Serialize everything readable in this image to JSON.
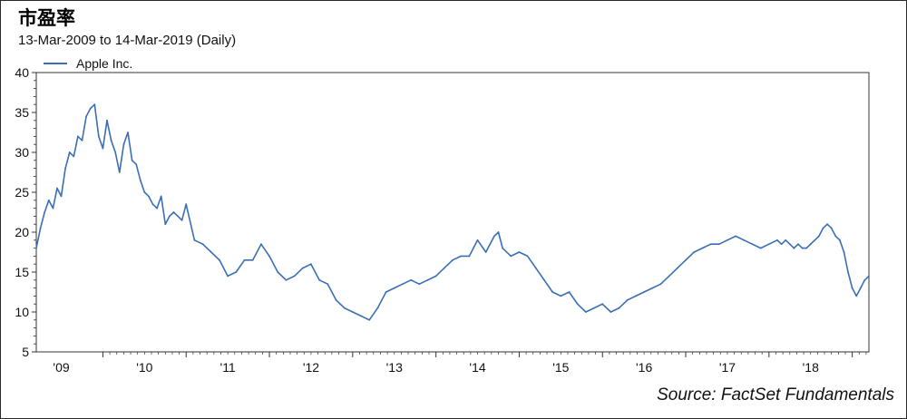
{
  "title": "市盈率",
  "subtitle": "13-Mar-2009 to 14-Mar-2019 (Daily)",
  "source": "Source: FactSet Fundamentals",
  "colors": {
    "series": "#3a6fb5",
    "axis": "#333333",
    "plot_bg": "#ffffff"
  },
  "chart_data": {
    "type": "line",
    "series": [
      {
        "name": "Apple Inc.",
        "x": [
          2009.2,
          2009.25,
          2009.3,
          2009.35,
          2009.4,
          2009.45,
          2009.5,
          2009.55,
          2009.6,
          2009.65,
          2009.7,
          2009.75,
          2009.8,
          2009.85,
          2009.9,
          2009.95,
          2010.0,
          2010.05,
          2010.1,
          2010.15,
          2010.2,
          2010.25,
          2010.3,
          2010.35,
          2010.4,
          2010.45,
          2010.5,
          2010.55,
          2010.6,
          2010.65,
          2010.7,
          2010.75,
          2010.8,
          2010.85,
          2010.9,
          2010.95,
          2011.0,
          2011.1,
          2011.2,
          2011.3,
          2011.4,
          2011.5,
          2011.6,
          2011.7,
          2011.8,
          2011.9,
          2012.0,
          2012.1,
          2012.2,
          2012.3,
          2012.4,
          2012.5,
          2012.6,
          2012.7,
          2012.8,
          2012.9,
          2013.0,
          2013.1,
          2013.2,
          2013.3,
          2013.4,
          2013.5,
          2013.6,
          2013.7,
          2013.8,
          2013.9,
          2014.0,
          2014.1,
          2014.2,
          2014.3,
          2014.4,
          2014.5,
          2014.6,
          2014.7,
          2014.75,
          2014.8,
          2014.9,
          2015.0,
          2015.1,
          2015.2,
          2015.3,
          2015.4,
          2015.5,
          2015.6,
          2015.7,
          2015.8,
          2015.9,
          2016.0,
          2016.1,
          2016.2,
          2016.3,
          2016.4,
          2016.5,
          2016.6,
          2016.7,
          2016.8,
          2016.9,
          2017.0,
          2017.1,
          2017.2,
          2017.3,
          2017.4,
          2017.5,
          2017.6,
          2017.7,
          2017.8,
          2017.9,
          2018.0,
          2018.1,
          2018.15,
          2018.2,
          2018.25,
          2018.3,
          2018.35,
          2018.4,
          2018.45,
          2018.5,
          2018.55,
          2018.6,
          2018.65,
          2018.7,
          2018.75,
          2018.8,
          2018.85,
          2018.9,
          2018.95,
          2019.0,
          2019.05,
          2019.1,
          2019.15,
          2019.2
        ],
        "values": [
          18,
          20.5,
          22.5,
          24,
          23,
          25.5,
          24.5,
          28,
          30,
          29.5,
          32,
          31.5,
          34.5,
          35.5,
          36,
          32,
          30.5,
          34,
          31.5,
          30,
          27.5,
          31,
          32.5,
          29,
          28.5,
          26.5,
          25,
          24.5,
          23.5,
          23,
          24.5,
          21,
          22,
          22.5,
          22,
          21.5,
          23.5,
          19,
          18.5,
          17.5,
          16.5,
          14.5,
          15,
          16.5,
          16.5,
          18.5,
          17,
          15,
          14,
          14.5,
          15.5,
          16,
          14,
          13.5,
          11.5,
          10.5,
          10,
          9.5,
          9,
          10.5,
          12.5,
          13,
          13.5,
          14,
          13.5,
          14,
          14.5,
          15.5,
          16.5,
          17,
          17,
          19,
          17.5,
          19.5,
          20,
          18,
          17,
          17.5,
          17,
          15.5,
          14,
          12.5,
          12,
          12.5,
          11,
          10,
          10.5,
          11,
          10,
          10.5,
          11.5,
          12,
          12.5,
          13,
          13.5,
          14.5,
          15.5,
          16.5,
          17.5,
          18,
          18.5,
          18.5,
          19,
          19.5,
          19,
          18.5,
          18,
          18.5,
          19,
          18.5,
          19,
          18.5,
          18,
          18.5,
          18,
          18,
          18.5,
          19,
          19.5,
          20.5,
          21,
          20.5,
          19.5,
          19,
          17.5,
          15,
          13,
          12,
          13,
          14,
          14.5
        ]
      }
    ],
    "ylim": [
      5,
      40
    ],
    "xlim": [
      2009.2,
      2019.2
    ],
    "yticks": [
      5,
      10,
      15,
      20,
      25,
      30,
      35,
      40
    ],
    "xticks": [
      {
        "x": 2009.5,
        "label": "'09"
      },
      {
        "x": 2010.5,
        "label": "'10"
      },
      {
        "x": 2011.5,
        "label": "'11"
      },
      {
        "x": 2012.5,
        "label": "'12"
      },
      {
        "x": 2013.5,
        "label": "'13"
      },
      {
        "x": 2014.5,
        "label": "'14"
      },
      {
        "x": 2015.5,
        "label": "'15"
      },
      {
        "x": 2016.5,
        "label": "'16"
      },
      {
        "x": 2017.5,
        "label": "'17"
      },
      {
        "x": 2018.5,
        "label": "'18"
      }
    ],
    "grid": false,
    "legend_position": "top-left"
  }
}
